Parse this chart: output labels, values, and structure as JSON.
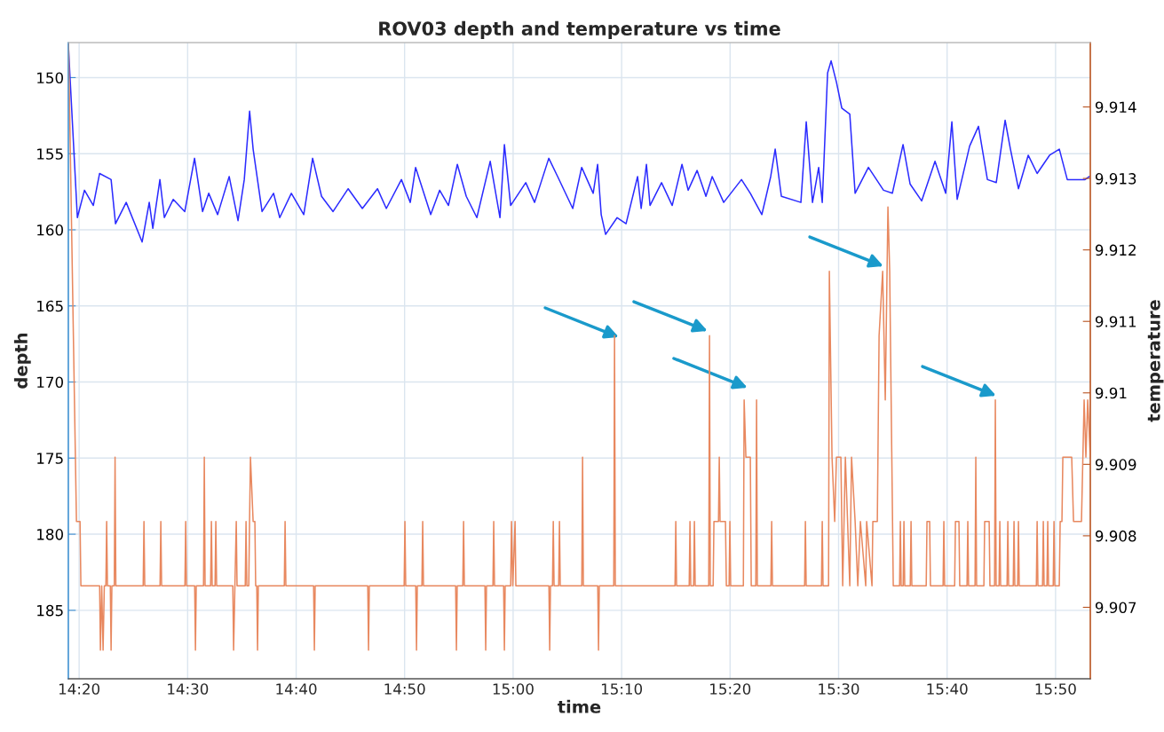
{
  "chart_data": {
    "type": "line",
    "title": "ROV03 depth and temperature vs time",
    "xlabel": "time",
    "ylabel": "depth",
    "y2label": "temperature",
    "xlim": [
      14.3167,
      15.8867
    ],
    "ylim": [
      189.5,
      147.7
    ],
    "y2lim": [
      9.906,
      9.9149
    ],
    "xticks": [
      {
        "value": 14.3333,
        "label": "14:20"
      },
      {
        "value": 14.5,
        "label": "14:30"
      },
      {
        "value": 14.6667,
        "label": "14:40"
      },
      {
        "value": 14.8333,
        "label": "14:50"
      },
      {
        "value": 15,
        "label": "15:00"
      },
      {
        "value": 15.1667,
        "label": "15:10"
      },
      {
        "value": 15.3333,
        "label": "15:20"
      },
      {
        "value": 15.5,
        "label": "15:30"
      },
      {
        "value": 15.6667,
        "label": "15:40"
      },
      {
        "value": 15.8333,
        "label": "15:50"
      }
    ],
    "yticks": [
      150,
      155,
      160,
      165,
      170,
      175,
      180,
      185
    ],
    "y2ticks": [
      9.907,
      9.908,
      9.909,
      9.91,
      9.911,
      9.912,
      9.913,
      9.914
    ],
    "grid": true,
    "series": [
      {
        "axis": "y",
        "color": "#2b2bff",
        "x": [
          14.3169,
          14.3306,
          14.3415,
          14.3551,
          14.3647,
          14.3824,
          14.3892,
          14.4056,
          14.4301,
          14.441,
          14.4465,
          14.4574,
          14.4642,
          14.4779,
          14.4956,
          14.5106,
          14.5229,
          14.5324,
          14.5461,
          14.5638,
          14.5774,
          14.587,
          14.5952,
          14.6006,
          14.6143,
          14.632,
          14.6415,
          14.6593,
          14.6784,
          14.692,
          14.7057,
          14.7234,
          14.7466,
          14.7684,
          14.7916,
          14.8052,
          14.8284,
          14.842,
          14.8502,
          14.8734,
          14.8871,
          14.9007,
          14.9143,
          14.928,
          14.9443,
          14.9648,
          14.9798,
          14.9866,
          14.9962,
          15.0194,
          15.033,
          15.0548,
          15.0684,
          15.0916,
          15.1053,
          15.123,
          15.1298,
          15.1353,
          15.1421,
          15.1598,
          15.1735,
          15.1912,
          15.1967,
          15.2048,
          15.2103,
          15.228,
          15.2444,
          15.2594,
          15.2689,
          15.2826,
          15.2962,
          15.3058,
          15.3235,
          15.3508,
          15.3644,
          15.3821,
          15.3957,
          15.4026,
          15.4121,
          15.4421,
          15.4503,
          15.4599,
          15.4694,
          15.4749,
          15.4831,
          15.4885,
          15.4967,
          15.5049,
          15.5172,
          15.5254,
          15.5458,
          15.569,
          15.5826,
          15.599,
          15.6099,
          15.6276,
          15.6481,
          15.6645,
          15.674,
          15.6822,
          15.7013,
          15.7149,
          15.7286,
          15.7422,
          15.7558,
          15.764,
          15.7763,
          15.7913,
          15.805,
          15.8241,
          15.8391,
          15.8513,
          15.8786,
          15.8854
        ],
        "values": [
          148,
          159.2,
          157.4,
          158.4,
          156.3,
          156.7,
          159.6,
          158.2,
          160.8,
          158.2,
          159.9,
          156.7,
          159.2,
          158.0,
          158.8,
          155.3,
          158.8,
          157.6,
          159.0,
          156.5,
          159.4,
          156.7,
          152.2,
          154.7,
          158.8,
          157.6,
          159.2,
          157.6,
          159.0,
          155.3,
          157.8,
          158.8,
          157.3,
          158.6,
          157.3,
          158.6,
          156.7,
          158.2,
          155.9,
          159.0,
          157.4,
          158.4,
          155.7,
          157.8,
          159.2,
          155.5,
          159.2,
          154.4,
          158.4,
          156.9,
          158.2,
          155.3,
          156.5,
          158.6,
          155.9,
          157.6,
          155.7,
          159.0,
          160.3,
          159.2,
          159.6,
          156.5,
          158.6,
          155.7,
          158.4,
          156.9,
          158.4,
          155.7,
          157.4,
          156.1,
          157.8,
          156.5,
          158.2,
          156.7,
          157.6,
          159.0,
          156.5,
          154.7,
          157.8,
          158.2,
          152.9,
          158.2,
          155.9,
          158.2,
          149.7,
          148.9,
          150.3,
          152.0,
          152.4,
          157.6,
          155.9,
          157.4,
          157.6,
          154.4,
          157.0,
          158.1,
          155.5,
          157.6,
          152.9,
          158.0,
          154.5,
          153.2,
          156.7,
          156.9,
          152.8,
          154.7,
          157.3,
          155.1,
          156.3,
          155.1,
          154.7,
          156.7,
          156.7,
          156.5
        ]
      },
      {
        "axis": "y2",
        "color": "#e8885f",
        "x": [
          14.317,
          14.3292,
          14.3347,
          14.336,
          14.3648,
          14.366,
          14.368,
          14.3701,
          14.372,
          14.3744,
          14.3756,
          14.3768,
          14.3812,
          14.3824,
          14.3836,
          14.3873,
          14.3885,
          14.3897,
          14.4317,
          14.4329,
          14.4341,
          14.4576,
          14.4588,
          14.46,
          14.4958,
          14.497,
          14.4982,
          14.5108,
          14.512,
          14.5132,
          14.5244,
          14.5256,
          14.5268,
          14.5353,
          14.5365,
          14.5377,
          14.5421,
          14.5433,
          14.5445,
          14.5694,
          14.5706,
          14.5726,
          14.5747,
          14.5759,
          14.5885,
          14.5897,
          14.5909,
          14.5939,
          14.5951,
          14.5965,
          14.6006,
          14.6033,
          14.6045,
          14.6062,
          14.6074,
          14.6086,
          14.6485,
          14.6497,
          14.6509,
          14.6935,
          14.6947,
          14.6959,
          14.7767,
          14.7779,
          14.7791,
          14.8326,
          14.8338,
          14.835,
          14.8504,
          14.8516,
          14.8528,
          14.8599,
          14.8611,
          14.8623,
          14.9117,
          14.9129,
          14.9141,
          14.9227,
          14.9239,
          14.9251,
          14.9567,
          14.9579,
          14.9591,
          14.969,
          14.9702,
          14.9714,
          14.9854,
          14.9866,
          14.9878,
          14.9963,
          14.9975,
          14.9995,
          15.003,
          15.0042,
          15.055,
          15.0562,
          15.0574,
          15.0605,
          15.0617,
          15.0629,
          15.07,
          15.0712,
          15.0724,
          15.1055,
          15.1067,
          15.1079,
          15.13,
          15.1312,
          15.1324,
          15.1546,
          15.1558,
          15.157,
          15.2487,
          15.2499,
          15.2511,
          15.2705,
          15.2717,
          15.2729,
          15.2773,
          15.2785,
          15.2797,
          15.3005,
          15.3017,
          15.3029,
          15.3073,
          15.3085,
          15.3155,
          15.3167,
          15.3179,
          15.3262,
          15.3276,
          15.3318,
          15.333,
          15.3342,
          15.3537,
          15.3549,
          15.3576,
          15.3644,
          15.3658,
          15.3728,
          15.374,
          15.3752,
          15.396,
          15.3972,
          15.3984,
          15.4478,
          15.449,
          15.4502,
          15.4737,
          15.4749,
          15.4761,
          15.4846,
          15.4858,
          15.4899,
          15.494,
          15.4967,
          15.5035,
          15.5063,
          15.5104,
          15.5172,
          15.5199,
          15.5254,
          15.5295,
          15.5335,
          15.5417,
          15.5431,
          15.5513,
          15.5526,
          15.5595,
          15.5622,
          15.5677,
          15.5717,
          15.5758,
          15.5785,
          15.584,
          15.5937,
          15.5949,
          15.5961,
          15.5992,
          15.6004,
          15.6016,
          15.6101,
          15.6113,
          15.6125,
          15.6346,
          15.6358,
          15.6399,
          15.6411,
          15.6605,
          15.6617,
          15.6629,
          15.6783,
          15.6795,
          15.6849,
          15.6861,
          15.6973,
          15.6985,
          15.6997,
          15.7096,
          15.7108,
          15.712,
          15.7232,
          15.7244,
          15.7313,
          15.7325,
          15.7396,
          15.7408,
          15.742,
          15.7465,
          15.7477,
          15.7489,
          15.7588,
          15.76,
          15.7612,
          15.7683,
          15.7695,
          15.7707,
          15.7751,
          15.7763,
          15.7775,
          15.8038,
          15.805,
          15.8062,
          15.8133,
          15.8145,
          15.8157,
          15.8201,
          15.8213,
          15.8225,
          15.8297,
          15.8309,
          15.8321,
          15.839,
          15.8404,
          15.8431,
          15.8445,
          15.8581,
          15.8609,
          15.8731,
          15.8772,
          15.8799,
          15.8827,
          15.8867
        ],
        "values": [
          9.9149,
          9.9082,
          9.9082,
          9.9073,
          9.9073,
          9.9064,
          9.9073,
          9.9064,
          9.9073,
          9.9073,
          9.9082,
          9.9073,
          9.9073,
          9.9064,
          9.9073,
          9.9073,
          9.9091,
          9.9073,
          9.9073,
          9.9082,
          9.9073,
          9.9073,
          9.9082,
          9.9073,
          9.9073,
          9.9082,
          9.9073,
          9.9073,
          9.9064,
          9.9073,
          9.9073,
          9.9091,
          9.9073,
          9.9073,
          9.9082,
          9.9073,
          9.9073,
          9.9082,
          9.9073,
          9.9073,
          9.9064,
          9.9073,
          9.9082,
          9.9073,
          9.9073,
          9.9082,
          9.9073,
          9.9073,
          9.9082,
          9.9091,
          9.9082,
          9.9082,
          9.9073,
          9.9073,
          9.9064,
          9.9073,
          9.9073,
          9.9082,
          9.9073,
          9.9073,
          9.9064,
          9.9073,
          9.9073,
          9.9064,
          9.9073,
          9.9073,
          9.9082,
          9.9073,
          9.9073,
          9.9064,
          9.9073,
          9.9073,
          9.9082,
          9.9073,
          9.9073,
          9.9064,
          9.9073,
          9.9073,
          9.9082,
          9.9073,
          9.9073,
          9.9064,
          9.9073,
          9.9073,
          9.9082,
          9.9073,
          9.9073,
          9.9064,
          9.9073,
          9.9073,
          9.9082,
          9.9073,
          9.9082,
          9.9073,
          9.9073,
          9.9064,
          9.9073,
          9.9073,
          9.9082,
          9.9073,
          9.9073,
          9.9082,
          9.9073,
          9.9073,
          9.9091,
          9.9073,
          9.9073,
          9.9064,
          9.9073,
          9.9073,
          9.9108,
          9.9073,
          9.9073,
          9.9082,
          9.9073,
          9.9073,
          9.9082,
          9.9073,
          9.9073,
          9.9082,
          9.9073,
          9.9073,
          9.9108,
          9.9073,
          9.9073,
          9.9082,
          9.9082,
          9.9091,
          9.9082,
          9.9082,
          9.9073,
          9.9073,
          9.9082,
          9.9073,
          9.9073,
          9.9099,
          9.9091,
          9.9091,
          9.9073,
          9.9073,
          9.9099,
          9.9073,
          9.9073,
          9.9082,
          9.9073,
          9.9073,
          9.9082,
          9.9073,
          9.9073,
          9.9082,
          9.9073,
          9.9073,
          9.9117,
          9.9091,
          9.9082,
          9.9091,
          9.9091,
          9.9073,
          9.9091,
          9.9073,
          9.9091,
          9.9082,
          9.9073,
          9.9082,
          9.9073,
          9.9082,
          9.9073,
          9.9082,
          9.9082,
          9.9108,
          9.9117,
          9.9099,
          9.9126,
          9.9117,
          9.9073,
          9.9073,
          9.9082,
          9.9073,
          9.9073,
          9.9082,
          9.9073,
          9.9073,
          9.9082,
          9.9073,
          9.9073,
          9.9082,
          9.9082,
          9.9073,
          9.9073,
          9.9082,
          9.9073,
          9.9073,
          9.9082,
          9.9082,
          9.9073,
          9.9073,
          9.9082,
          9.9073,
          9.9073,
          9.9091,
          9.9073,
          9.9073,
          9.9082,
          9.9082,
          9.9073,
          9.9073,
          9.9099,
          9.9073,
          9.9073,
          9.9082,
          9.9073,
          9.9073,
          9.9082,
          9.9073,
          9.9073,
          9.9082,
          9.9073,
          9.9073,
          9.9082,
          9.9073,
          9.9073,
          9.9082,
          9.9073,
          9.9073,
          9.9082,
          9.9073,
          9.9073,
          9.9082,
          9.9073,
          9.9073,
          9.9082,
          9.9073,
          9.9073,
          9.9082,
          9.9082,
          9.9091,
          9.9091,
          9.9082,
          9.9082,
          9.9099,
          9.9091,
          9.9099,
          9.9091
        ]
      }
    ]
  }
}
